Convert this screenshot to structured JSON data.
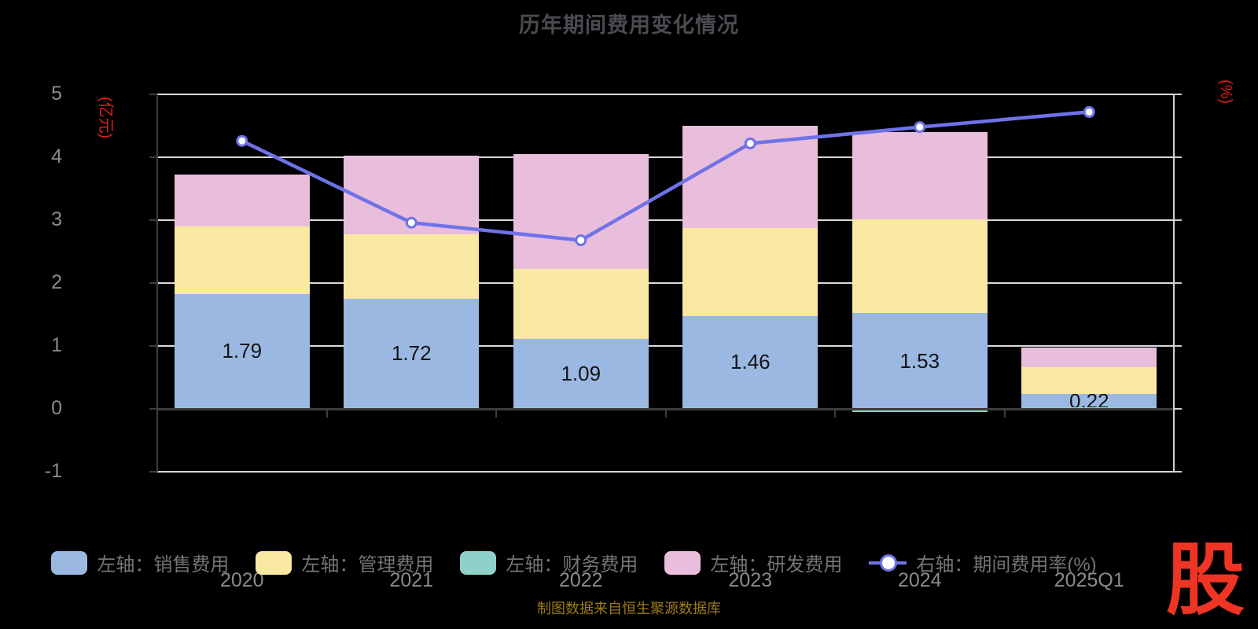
{
  "title": "历年期间费用变化情况",
  "footer": "制图数据来自恒生聚源数据库",
  "logo_glyph": "股",
  "colors": {
    "background": "#000000",
    "title": "#4a4a50",
    "grid": "#d9d9d9",
    "axis_dark": "#3d3d3d",
    "axis_light": "#cfcfcf",
    "tick_label": "#8b8b8b",
    "axis_name": "#e01f1f",
    "bar_label": "#141414",
    "legend_text": "#747474",
    "footer": "#9d7c1c",
    "logo": "#ee3423",
    "series_sales": "#9ab8e2",
    "series_admin": "#f8e8a2",
    "series_finance": "#8dd1c9",
    "series_rnd": "#e9bddc",
    "series_rate_line": "#6f72e8"
  },
  "chart_data": {
    "type": "bar",
    "subtype": "stacked bars with overlay line (dual axis)",
    "title": "历年期间费用变化情况",
    "categories": [
      "2020",
      "2021",
      "2022",
      "2023",
      "2024",
      "2025Q1"
    ],
    "series": [
      {
        "id": "sales",
        "name": "左轴：销售费用",
        "type": "bar",
        "stack": true,
        "color": "#9ab8e2",
        "values": [
          1.79,
          1.72,
          1.09,
          1.46,
          1.53,
          0.22
        ]
      },
      {
        "id": "admin",
        "name": "左轴：管理费用",
        "type": "bar",
        "stack": true,
        "color": "#f8e8a2",
        "values": [
          1.08,
          1.02,
          1.11,
          1.4,
          1.48,
          0.42
        ]
      },
      {
        "id": "finance",
        "name": "左轴：财务费用",
        "type": "bar",
        "stack": true,
        "color": "#8dd1c9",
        "values": [
          0.03,
          0.03,
          0.02,
          0.02,
          -0.05,
          0.02
        ]
      },
      {
        "id": "rnd",
        "name": "左轴：研发费用",
        "type": "bar",
        "stack": true,
        "color": "#e9bddc",
        "values": [
          0.82,
          1.25,
          1.83,
          1.62,
          1.39,
          0.31
        ]
      },
      {
        "id": "rate",
        "name": "右轴：期间费用率(%)",
        "type": "line",
        "axis": "right",
        "color": "#6f72e8",
        "values": [
          26.3,
          19.8,
          18.4,
          26.1,
          27.4,
          28.6
        ]
      }
    ],
    "bar_labels": [
      "1.79",
      "1.72",
      "1.09",
      "1.46",
      "1.53",
      "0.22"
    ],
    "left_axis": {
      "name": "(亿元)",
      "min": -1,
      "max": 5,
      "ticks": [
        5,
        4,
        3,
        2,
        1,
        0,
        -1
      ]
    },
    "right_axis": {
      "name": "(%)",
      "min": 0,
      "max": 30,
      "ticks": [
        30,
        25,
        20,
        15,
        10,
        5,
        0
      ]
    },
    "grid": "on",
    "legend_position": "bottom"
  },
  "legend": {
    "items": [
      {
        "kind": "swatch",
        "color": "#9ab8e2",
        "label": "左轴：销售费用"
      },
      {
        "kind": "swatch",
        "color": "#f8e8a2",
        "label": "左轴：管理费用"
      },
      {
        "kind": "swatch",
        "color": "#8dd1c9",
        "label": "左轴：财务费用"
      },
      {
        "kind": "swatch",
        "color": "#e9bddc",
        "label": "左轴：研发费用"
      },
      {
        "kind": "line",
        "color": "#6f72e8",
        "label": "右轴：期间费用率(%)"
      }
    ]
  }
}
